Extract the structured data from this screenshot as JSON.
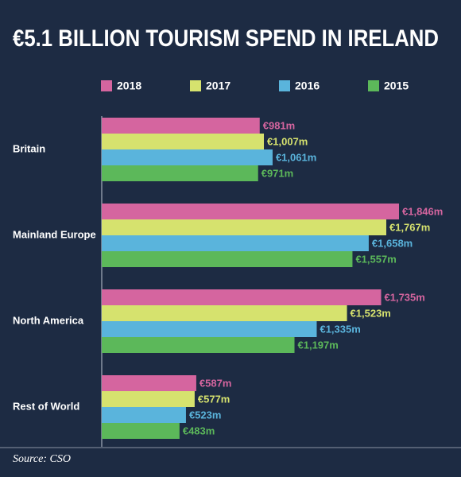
{
  "chart_data": {
    "type": "bar",
    "orientation": "horizontal",
    "title": "€5.1 BILLION TOURISM SPEND IN IRELAND",
    "source": "Source: CSO",
    "categories": [
      "Britain",
      "Mainland Europe",
      "North America",
      "Rest of World"
    ],
    "series": [
      {
        "name": "2018",
        "color": "#d5659f",
        "values": [
          981,
          1846,
          1735,
          587
        ],
        "value_labels": [
          "€981m",
          "€1,846m",
          "€1,735m",
          "€587m"
        ]
      },
      {
        "name": "2017",
        "color": "#d6e26e",
        "values": [
          1007,
          1767,
          1523,
          577
        ],
        "value_labels": [
          "€1,007m",
          "€1,767m",
          "€1,523m",
          "€577m"
        ]
      },
      {
        "name": "2016",
        "color": "#5ab4dc",
        "values": [
          1061,
          1658,
          1335,
          523
        ],
        "value_labels": [
          "€1,061m",
          "€1,658m",
          "€1,335m",
          "€523m"
        ]
      },
      {
        "name": "2015",
        "color": "#5cb85a",
        "values": [
          971,
          1557,
          1197,
          483
        ],
        "value_labels": [
          "€971m",
          "€1,557m",
          "€1,197m",
          "€483m"
        ]
      }
    ],
    "legend": "top"
  }
}
